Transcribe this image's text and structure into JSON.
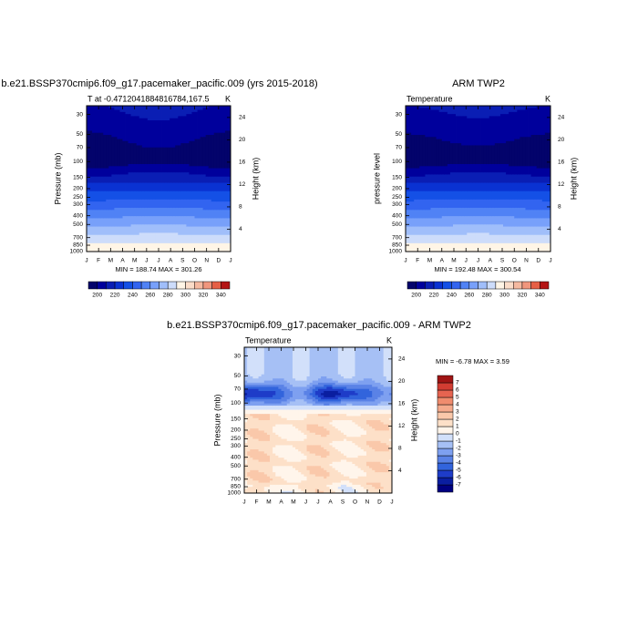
{
  "chart_data": [
    {
      "type": "contour",
      "title": "b.e21.BSSP370cmip6.f09_g17.pacemaker_pacific.009 (yrs 2015-2018)",
      "left_title": "T at -0.4712041884816784,167.5",
      "right_title": "K",
      "ylabel": "Pressure (mb)",
      "y2label": "Height (km)",
      "categories": [
        "J",
        "F",
        "M",
        "A",
        "M",
        "J",
        "J",
        "A",
        "S",
        "O",
        "N",
        "D",
        "J"
      ],
      "ylim": [
        1000,
        24
      ],
      "yticks": [
        30,
        50,
        70,
        100,
        150,
        200,
        250,
        300,
        400,
        500,
        700,
        850,
        1000
      ],
      "log_scale": true,
      "y2lim": [
        0,
        26.1
      ],
      "y2ticks": [
        4,
        8,
        12,
        16,
        20,
        24
      ],
      "stats": "MIN = 188.74 MAX = 301.26",
      "colorbar": {
        "labels": [
          200,
          220,
          240,
          260,
          280,
          300,
          320,
          340
        ],
        "colors": [
          "#03036b",
          "#00009c",
          "#0a1eb4",
          "#0a32d2",
          "#1450e6",
          "#3264f0",
          "#5082f5",
          "#78a0fa",
          "#a0befa",
          "#cddcfa",
          "#fff5e6",
          "#fadcc8",
          "#f5b9a0",
          "#f0967d",
          "#e65f46",
          "#b41414"
        ]
      }
    },
    {
      "type": "contour",
      "title": "ARM TWP2",
      "left_title": "Temperature",
      "right_title": "K",
      "ylabel": "pressure level",
      "y2label": "Height (km)",
      "categories": [
        "J",
        "F",
        "M",
        "A",
        "M",
        "J",
        "J",
        "A",
        "S",
        "O",
        "N",
        "D",
        "J"
      ],
      "ylim": [
        1000,
        24
      ],
      "yticks": [
        30,
        50,
        70,
        100,
        150,
        200,
        250,
        300,
        400,
        500,
        700,
        850,
        1000
      ],
      "log_scale": true,
      "y2lim": [
        0,
        26.1
      ],
      "y2ticks": [
        4,
        8,
        12,
        16,
        20,
        24
      ],
      "stats": "MIN = 192.48 MAX = 300.54",
      "colorbar": {
        "labels": [
          200,
          220,
          240,
          260,
          280,
          300,
          320,
          340
        ],
        "colors": [
          "#03036b",
          "#00009c",
          "#0a1eb4",
          "#0a32d2",
          "#1450e6",
          "#3264f0",
          "#5082f5",
          "#78a0fa",
          "#a0befa",
          "#cddcfa",
          "#fff5e6",
          "#fadcc8",
          "#f5b9a0",
          "#f0967d",
          "#e65f46",
          "#b41414"
        ]
      }
    },
    {
      "type": "contour",
      "title": "b.e21.BSSP370cmip6.f09_g17.pacemaker_pacific.009 - ARM TWP2",
      "left_title": "Temperature",
      "right_title": "K",
      "ylabel": "Pressure (mb)",
      "y2label": "Height (km)",
      "categories": [
        "J",
        "F",
        "M",
        "A",
        "M",
        "J",
        "J",
        "A",
        "S",
        "O",
        "N",
        "D",
        "J"
      ],
      "ylim": [
        1000,
        24
      ],
      "yticks": [
        30,
        50,
        70,
        100,
        150,
        200,
        250,
        300,
        400,
        500,
        700,
        850,
        1000
      ],
      "log_scale": true,
      "y2lim": [
        0,
        26.1
      ],
      "y2ticks": [
        4,
        8,
        12,
        16,
        20,
        24
      ],
      "stats": "MIN =  -6.78 MAX =   3.59",
      "colorbar": {
        "labels": [
          7,
          6,
          5,
          4,
          3,
          2,
          1,
          0,
          -1,
          -2,
          -3,
          -4,
          -5,
          -6,
          -7
        ],
        "colors": [
          "#000080",
          "#0a1ea0",
          "#1e3cc8",
          "#3264dc",
          "#5a82e6",
          "#7ea0f0",
          "#a6c0f5",
          "#d2e0fa",
          "#fff5eb",
          "#fde0c8",
          "#fac8aa",
          "#f5aa8c",
          "#f08c6e",
          "#e66450",
          "#d23c32",
          "#a01414"
        ]
      }
    }
  ]
}
